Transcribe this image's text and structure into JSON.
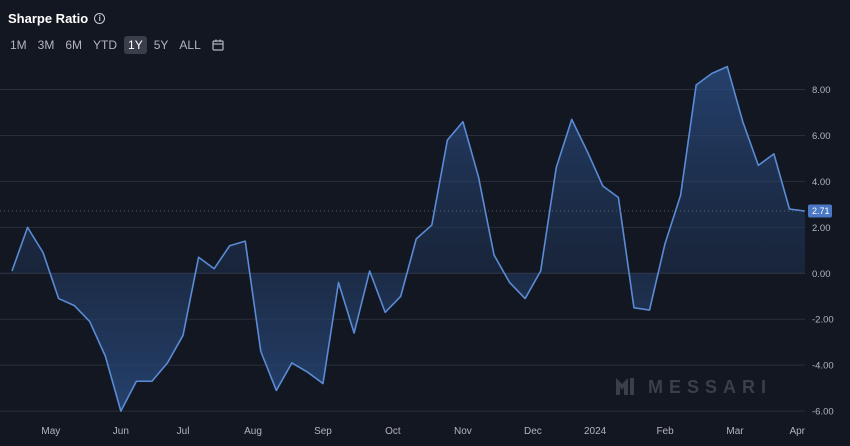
{
  "header": {
    "title": "Sharpe Ratio"
  },
  "ranges": [
    "1M",
    "3M",
    "6M",
    "YTD",
    "1Y",
    "5Y",
    "ALL"
  ],
  "active_range": "1Y",
  "watermark": "MESSARI",
  "colors": {
    "background": "#131722",
    "line": "#5a8bd6",
    "grid": "#2a2e39",
    "badge": "#4a78c4"
  },
  "chart_data": {
    "type": "area",
    "title": "Sharpe Ratio",
    "xlabel": "",
    "ylabel": "",
    "ylim": [
      -6.3,
      9.2
    ],
    "yticks": [
      -6,
      -4,
      -2,
      0,
      2,
      4,
      6,
      8
    ],
    "ytick_labels": [
      "-6.00",
      "-4.00",
      "-2.00",
      "0.00",
      "2.00",
      "4.00",
      "6.00",
      "8.00"
    ],
    "xticks": [
      {
        "label": "May",
        "x": 2.5
      },
      {
        "label": "Jun",
        "x": 7
      },
      {
        "label": "Jul",
        "x": 11
      },
      {
        "label": "Aug",
        "x": 15.5
      },
      {
        "label": "Sep",
        "x": 20
      },
      {
        "label": "Oct",
        "x": 24.5
      },
      {
        "label": "Nov",
        "x": 29
      },
      {
        "label": "Dec",
        "x": 33.5
      },
      {
        "label": "2024",
        "x": 37.5
      },
      {
        "label": "Feb",
        "x": 42
      },
      {
        "label": "Mar",
        "x": 46.5
      },
      {
        "label": "Apr",
        "x": 50.5
      }
    ],
    "current_value": 2.71,
    "current_label": "2.71",
    "grid": true,
    "series": [
      {
        "values": [
          0.1,
          2.0,
          0.9,
          -1.1,
          -1.4,
          -2.1,
          -3.6,
          -6.0,
          -4.7,
          -4.7,
          -3.9,
          -2.7,
          0.7,
          0.2,
          1.2,
          1.4,
          -3.4,
          -5.1,
          -3.9,
          -4.3,
          -4.8,
          -0.4,
          -2.6,
          0.1,
          -1.7,
          -1.0,
          1.5,
          2.1,
          5.8,
          6.6,
          4.2,
          0.8,
          -0.4,
          -1.1,
          0.1,
          4.6,
          6.7,
          5.3,
          3.8,
          3.3,
          -1.5,
          -1.6,
          1.3,
          3.4,
          8.2,
          8.7,
          9.0,
          6.6,
          4.7,
          5.2,
          2.8,
          2.71
        ]
      }
    ]
  }
}
